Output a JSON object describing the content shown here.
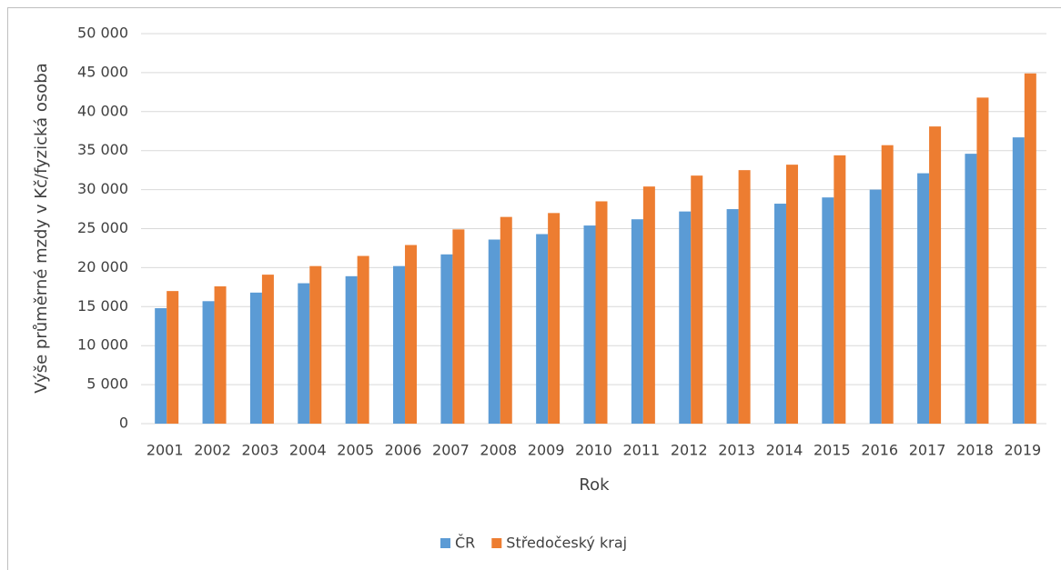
{
  "chart_data": {
    "type": "bar",
    "x_label": "Rok",
    "y_label": "Výše průměrné mzdy v Kč/fyzická osoba",
    "categories": [
      "2001",
      "2002",
      "2003",
      "2004",
      "2005",
      "2006",
      "2007",
      "2008",
      "2009",
      "2010",
      "2011",
      "2012",
      "2013",
      "2014",
      "2015",
      "2016",
      "2017",
      "2018",
      "2019"
    ],
    "series": [
      {
        "name": "ČR",
        "color": "#5b9bd5",
        "values": [
          14800,
          15700,
          16800,
          18000,
          18900,
          20200,
          21700,
          23600,
          24300,
          25400,
          26200,
          27200,
          27500,
          28200,
          29000,
          30000,
          32100,
          34600,
          36700
        ]
      },
      {
        "name": "Středočeský kraj",
        "color": "#ed7d31",
        "values": [
          17000,
          17600,
          19100,
          20200,
          21500,
          22900,
          24900,
          26500,
          27000,
          28500,
          30400,
          31800,
          32500,
          33200,
          34400,
          35700,
          38100,
          41800,
          44900
        ]
      }
    ],
    "ylim": [
      0,
      50000
    ],
    "yticks": [
      0,
      {
        "value": 5000,
        "label": "5 000"
      },
      {
        "value": 10000,
        "label": "10 000"
      },
      {
        "value": 15000,
        "label": "15 000"
      },
      {
        "value": 20000,
        "label": "20 000"
      },
      {
        "value": 25000,
        "label": "25 000"
      },
      {
        "value": 30000,
        "label": "30 000"
      },
      {
        "value": 35000,
        "label": "35 000"
      },
      {
        "value": 40000,
        "label": "40 000"
      },
      {
        "value": 45000,
        "label": "45 000"
      },
      {
        "value": 50000,
        "label": "50 000"
      }
    ],
    "grid": true,
    "legend": "bottom"
  }
}
